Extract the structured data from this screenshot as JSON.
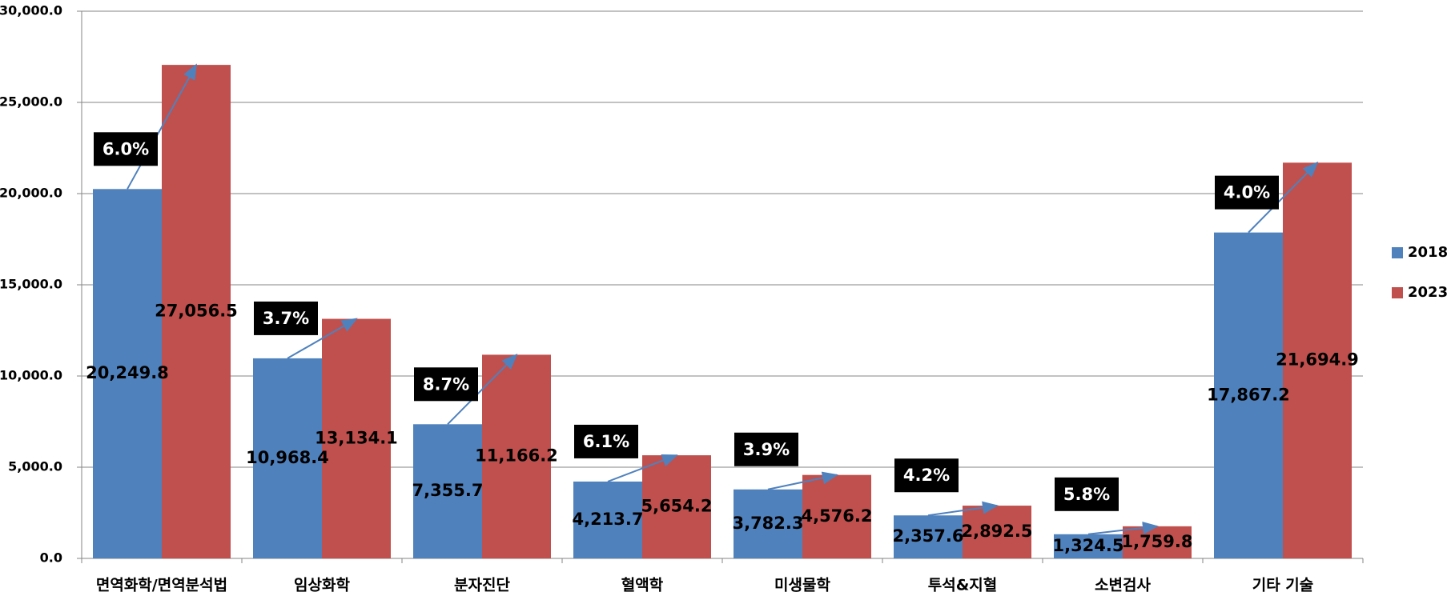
{
  "chart_data": {
    "type": "bar",
    "categories": [
      "면역화학/면역분석법",
      "임상화학",
      "분자진단",
      "혈액학",
      "미생물학",
      "투석&지혈",
      "소변검사",
      "기타 기술"
    ],
    "series": [
      {
        "name": "2018",
        "color": "#4f81bd",
        "values": [
          20249.8,
          10968.4,
          7355.7,
          4213.7,
          3782.3,
          2357.6,
          1324.5,
          17867.2
        ],
        "value_labels": [
          "20,249.8",
          "10,968.4",
          "7,355.7",
          "4,213.7",
          "3,782.3",
          "2,357.6",
          "1,324.5",
          "17,867.2"
        ]
      },
      {
        "name": "2023",
        "color": "#c0504d",
        "values": [
          27056.5,
          13134.1,
          11166.2,
          5654.2,
          4576.2,
          2892.5,
          1759.8,
          21694.9
        ],
        "value_labels": [
          "27,056.5",
          "13,134.1",
          "11,166.2",
          "5,654.2",
          "4,576.2",
          "2,892.5",
          "1,759.8",
          "21,694.9"
        ]
      }
    ],
    "annotations": [
      "6.0%",
      "3.7%",
      "8.7%",
      "6.1%",
      "3.9%",
      "4.2%",
      "5.8%",
      "4.0%"
    ],
    "ylim": [
      0,
      30000
    ],
    "yticks": [
      {
        "value": 0,
        "label": "0.0"
      },
      {
        "value": 5000,
        "label": "5,000.0"
      },
      {
        "value": 10000,
        "label": "10,000.0"
      },
      {
        "value": 15000,
        "label": "15,000.0"
      },
      {
        "value": 20000,
        "label": "20,000.0"
      },
      {
        "value": 25000,
        "label": "25,000.0"
      },
      {
        "value": 30000,
        "label": "30,000.0"
      }
    ],
    "grid": true,
    "legend": "right"
  }
}
